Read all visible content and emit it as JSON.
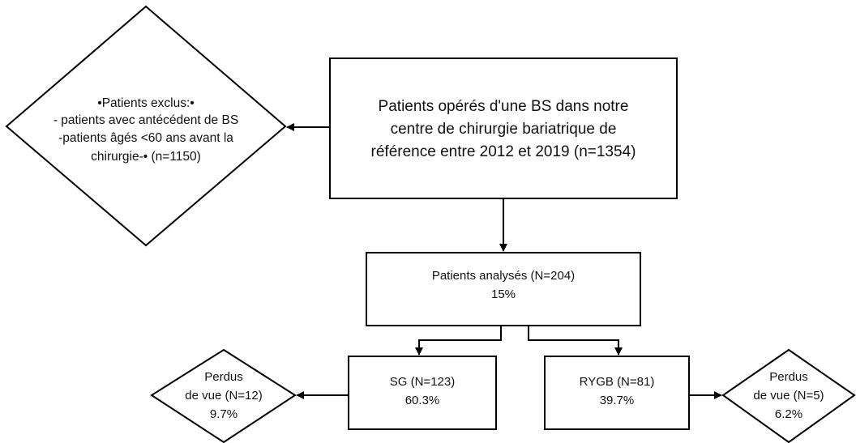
{
  "nodes": [
    {
      "id": "main",
      "lines": [
        "Patients opérés d'une BS dans notre",
        "centre de chirurgie bariatrique de",
        "référence entre 2012 et 2019 (n=1354)"
      ]
    },
    {
      "id": "excluded",
      "lines": [
        "•Patients exclus:•",
        "- patients avec antécédent de BS",
        "-patients âgés <60 ans avant la",
        "chirurgie-• (n=1150)"
      ]
    },
    {
      "id": "analysed",
      "lines": [
        "Patients analysés (N=204)",
        "15%"
      ]
    },
    {
      "id": "sg",
      "lines": [
        "SG (N=123)",
        "60.3%"
      ]
    },
    {
      "id": "rygb",
      "lines": [
        "RYGB (N=81)",
        "39.7%"
      ]
    },
    {
      "id": "lost-sg",
      "lines": [
        "Perdus",
        "de vue (N=12)",
        "9.7%"
      ]
    },
    {
      "id": "lost-rygb",
      "lines": [
        "Perdus",
        "de vue (N=5)",
        "6.2%"
      ]
    }
  ]
}
